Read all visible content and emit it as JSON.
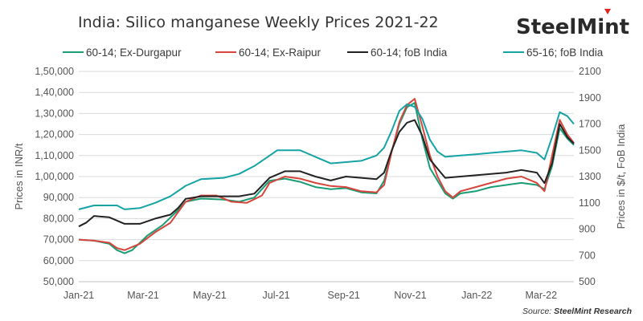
{
  "title": "India: Silico manganese Weekly Prices 2021-22",
  "brand": {
    "part1": "Steel",
    "part2": "Mint"
  },
  "source": {
    "prefix": "Source: ",
    "brand": "SteelMint Research"
  },
  "chart_data": {
    "type": "line",
    "title": "India: Silico manganese Weekly Prices 2021-22",
    "ylabel_left": "Prices in INR/t",
    "ylabel_right": "Prices in $/t, FoB India",
    "xlabel": "",
    "x_ticks": [
      "Jan-21",
      "Mar-21",
      "May-21",
      "Jul-21",
      "Sep-21",
      "Nov-21",
      "Jan-22",
      "Mar-22"
    ],
    "y_left_lim": [
      50000,
      150000
    ],
    "y_left_ticks": [
      "50,000",
      "60,000",
      "70,000",
      "80,000",
      "90,000",
      "1,00,000",
      "1,10,000",
      "1,20,000",
      "1,30,000",
      "1,40,000",
      "1,50,000"
    ],
    "y_right_lim": [
      500,
      2100
    ],
    "y_right_ticks": [
      "500",
      "700",
      "900",
      "1100",
      "1300",
      "1500",
      "1700",
      "1900",
      "2100"
    ],
    "grid": "horizontal",
    "legend_position": "top",
    "x_start": "2021-01-01",
    "x_end": "2022-03-31",
    "series": [
      {
        "name": "60-14; Ex-Durgapur",
        "axis": "left",
        "color": "#1a9c74",
        "points": [
          [
            "2021-01-01",
            70000
          ],
          [
            "2021-01-15",
            69500
          ],
          [
            "2021-01-29",
            68000
          ],
          [
            "2021-02-05",
            65000
          ],
          [
            "2021-02-12",
            63500
          ],
          [
            "2021-02-19",
            65000
          ],
          [
            "2021-03-05",
            72000
          ],
          [
            "2021-03-19",
            77000
          ],
          [
            "2021-04-02",
            84000
          ],
          [
            "2021-04-09",
            88000
          ],
          [
            "2021-04-23",
            89500
          ],
          [
            "2021-05-14",
            89000
          ],
          [
            "2021-05-28",
            88000
          ],
          [
            "2021-06-11",
            90000
          ],
          [
            "2021-06-18",
            94000
          ],
          [
            "2021-06-25",
            98000
          ],
          [
            "2021-07-09",
            99000
          ],
          [
            "2021-07-23",
            97500
          ],
          [
            "2021-08-06",
            95000
          ],
          [
            "2021-08-20",
            94000
          ],
          [
            "2021-09-03",
            94500
          ],
          [
            "2021-09-17",
            92500
          ],
          [
            "2021-10-01",
            92000
          ],
          [
            "2021-10-08",
            98000
          ],
          [
            "2021-10-15",
            112000
          ],
          [
            "2021-10-22",
            125000
          ],
          [
            "2021-10-29",
            133000
          ],
          [
            "2021-11-05",
            135000
          ],
          [
            "2021-11-12",
            118000
          ],
          [
            "2021-11-19",
            104000
          ],
          [
            "2021-11-26",
            98000
          ],
          [
            "2021-12-03",
            92000
          ],
          [
            "2021-12-10",
            89500
          ],
          [
            "2021-12-17",
            92000
          ],
          [
            "2021-12-31",
            93000
          ],
          [
            "2022-01-14",
            95000
          ],
          [
            "2022-01-28",
            96000
          ],
          [
            "2022-02-11",
            97000
          ],
          [
            "2022-02-25",
            96000
          ],
          [
            "2022-03-04",
            94000
          ],
          [
            "2022-03-11",
            105000
          ],
          [
            "2022-03-18",
            123000
          ],
          [
            "2022-03-25",
            118000
          ],
          [
            "2022-03-31",
            115000
          ]
        ]
      },
      {
        "name": "60-14; Ex-Raipur",
        "axis": "left",
        "color": "#d5453b",
        "points": [
          [
            "2021-01-01",
            70000
          ],
          [
            "2021-01-15",
            69500
          ],
          [
            "2021-01-29",
            68500
          ],
          [
            "2021-02-05",
            66000
          ],
          [
            "2021-02-12",
            65000
          ],
          [
            "2021-02-26",
            68000
          ],
          [
            "2021-03-12",
            73500
          ],
          [
            "2021-03-26",
            78000
          ],
          [
            "2021-04-09",
            88000
          ],
          [
            "2021-04-23",
            91000
          ],
          [
            "2021-05-07",
            91000
          ],
          [
            "2021-05-21",
            88000
          ],
          [
            "2021-06-04",
            87500
          ],
          [
            "2021-06-18",
            91000
          ],
          [
            "2021-06-25",
            97000
          ],
          [
            "2021-07-09",
            100000
          ],
          [
            "2021-07-23",
            99000
          ],
          [
            "2021-08-06",
            97000
          ],
          [
            "2021-08-20",
            95500
          ],
          [
            "2021-09-03",
            95000
          ],
          [
            "2021-09-17",
            93000
          ],
          [
            "2021-10-01",
            92500
          ],
          [
            "2021-10-08",
            96000
          ],
          [
            "2021-10-15",
            112000
          ],
          [
            "2021-10-22",
            126000
          ],
          [
            "2021-10-29",
            134000
          ],
          [
            "2021-11-05",
            137000
          ],
          [
            "2021-11-12",
            124000
          ],
          [
            "2021-11-19",
            110000
          ],
          [
            "2021-11-26",
            100000
          ],
          [
            "2021-12-03",
            93000
          ],
          [
            "2021-12-10",
            90000
          ],
          [
            "2021-12-17",
            93000
          ],
          [
            "2021-12-31",
            95000
          ],
          [
            "2022-01-14",
            97000
          ],
          [
            "2022-01-28",
            99000
          ],
          [
            "2022-02-11",
            100000
          ],
          [
            "2022-02-25",
            97000
          ],
          [
            "2022-03-04",
            93000
          ],
          [
            "2022-03-11",
            110000
          ],
          [
            "2022-03-18",
            127000
          ],
          [
            "2022-03-25",
            120000
          ],
          [
            "2022-03-31",
            116000
          ]
        ]
      },
      {
        "name": "60-14; foB India",
        "axis": "right",
        "color": "#222222",
        "points": [
          [
            "2021-01-01",
            920
          ],
          [
            "2021-01-08",
            950
          ],
          [
            "2021-01-15",
            1000
          ],
          [
            "2021-01-29",
            990
          ],
          [
            "2021-02-12",
            940
          ],
          [
            "2021-02-26",
            940
          ],
          [
            "2021-03-12",
            980
          ],
          [
            "2021-03-26",
            1010
          ],
          [
            "2021-04-02",
            1060
          ],
          [
            "2021-04-09",
            1130
          ],
          [
            "2021-04-23",
            1150
          ],
          [
            "2021-05-14",
            1150
          ],
          [
            "2021-05-28",
            1150
          ],
          [
            "2021-06-11",
            1170
          ],
          [
            "2021-06-18",
            1230
          ],
          [
            "2021-06-25",
            1290
          ],
          [
            "2021-07-09",
            1340
          ],
          [
            "2021-07-23",
            1340
          ],
          [
            "2021-08-06",
            1300
          ],
          [
            "2021-08-20",
            1270
          ],
          [
            "2021-09-03",
            1300
          ],
          [
            "2021-09-17",
            1290
          ],
          [
            "2021-10-01",
            1280
          ],
          [
            "2021-10-08",
            1330
          ],
          [
            "2021-10-15",
            1500
          ],
          [
            "2021-10-22",
            1640
          ],
          [
            "2021-10-29",
            1710
          ],
          [
            "2021-11-05",
            1730
          ],
          [
            "2021-11-12",
            1610
          ],
          [
            "2021-11-19",
            1430
          ],
          [
            "2021-11-26",
            1360
          ],
          [
            "2021-12-03",
            1290
          ],
          [
            "2021-12-17",
            1300
          ],
          [
            "2021-12-31",
            1310
          ],
          [
            "2022-01-14",
            1320
          ],
          [
            "2022-01-28",
            1330
          ],
          [
            "2022-02-11",
            1350
          ],
          [
            "2022-02-25",
            1330
          ],
          [
            "2022-03-04",
            1250
          ],
          [
            "2022-03-11",
            1400
          ],
          [
            "2022-03-18",
            1700
          ],
          [
            "2022-03-25",
            1600
          ],
          [
            "2022-03-31",
            1550
          ]
        ]
      },
      {
        "name": "65-16; foB India",
        "axis": "right",
        "color": "#16a3a6",
        "points": [
          [
            "2021-01-01",
            1050
          ],
          [
            "2021-01-15",
            1080
          ],
          [
            "2021-02-05",
            1080
          ],
          [
            "2021-02-12",
            1050
          ],
          [
            "2021-02-26",
            1060
          ],
          [
            "2021-03-12",
            1100
          ],
          [
            "2021-03-26",
            1150
          ],
          [
            "2021-04-09",
            1230
          ],
          [
            "2021-04-23",
            1280
          ],
          [
            "2021-05-14",
            1290
          ],
          [
            "2021-05-28",
            1320
          ],
          [
            "2021-06-11",
            1380
          ],
          [
            "2021-06-18",
            1420
          ],
          [
            "2021-07-02",
            1500
          ],
          [
            "2021-07-23",
            1500
          ],
          [
            "2021-08-06",
            1450
          ],
          [
            "2021-08-20",
            1400
          ],
          [
            "2021-09-03",
            1410
          ],
          [
            "2021-09-17",
            1420
          ],
          [
            "2021-10-01",
            1460
          ],
          [
            "2021-10-08",
            1520
          ],
          [
            "2021-10-15",
            1650
          ],
          [
            "2021-10-22",
            1800
          ],
          [
            "2021-10-29",
            1850
          ],
          [
            "2021-11-05",
            1830
          ],
          [
            "2021-11-12",
            1740
          ],
          [
            "2021-11-19",
            1580
          ],
          [
            "2021-11-26",
            1490
          ],
          [
            "2021-12-03",
            1450
          ],
          [
            "2021-12-17",
            1460
          ],
          [
            "2021-12-31",
            1470
          ],
          [
            "2022-01-14",
            1480
          ],
          [
            "2022-01-28",
            1490
          ],
          [
            "2022-02-11",
            1500
          ],
          [
            "2022-02-25",
            1480
          ],
          [
            "2022-03-04",
            1430
          ],
          [
            "2022-03-11",
            1600
          ],
          [
            "2022-03-18",
            1790
          ],
          [
            "2022-03-25",
            1760
          ],
          [
            "2022-03-31",
            1700
          ]
        ]
      }
    ]
  }
}
